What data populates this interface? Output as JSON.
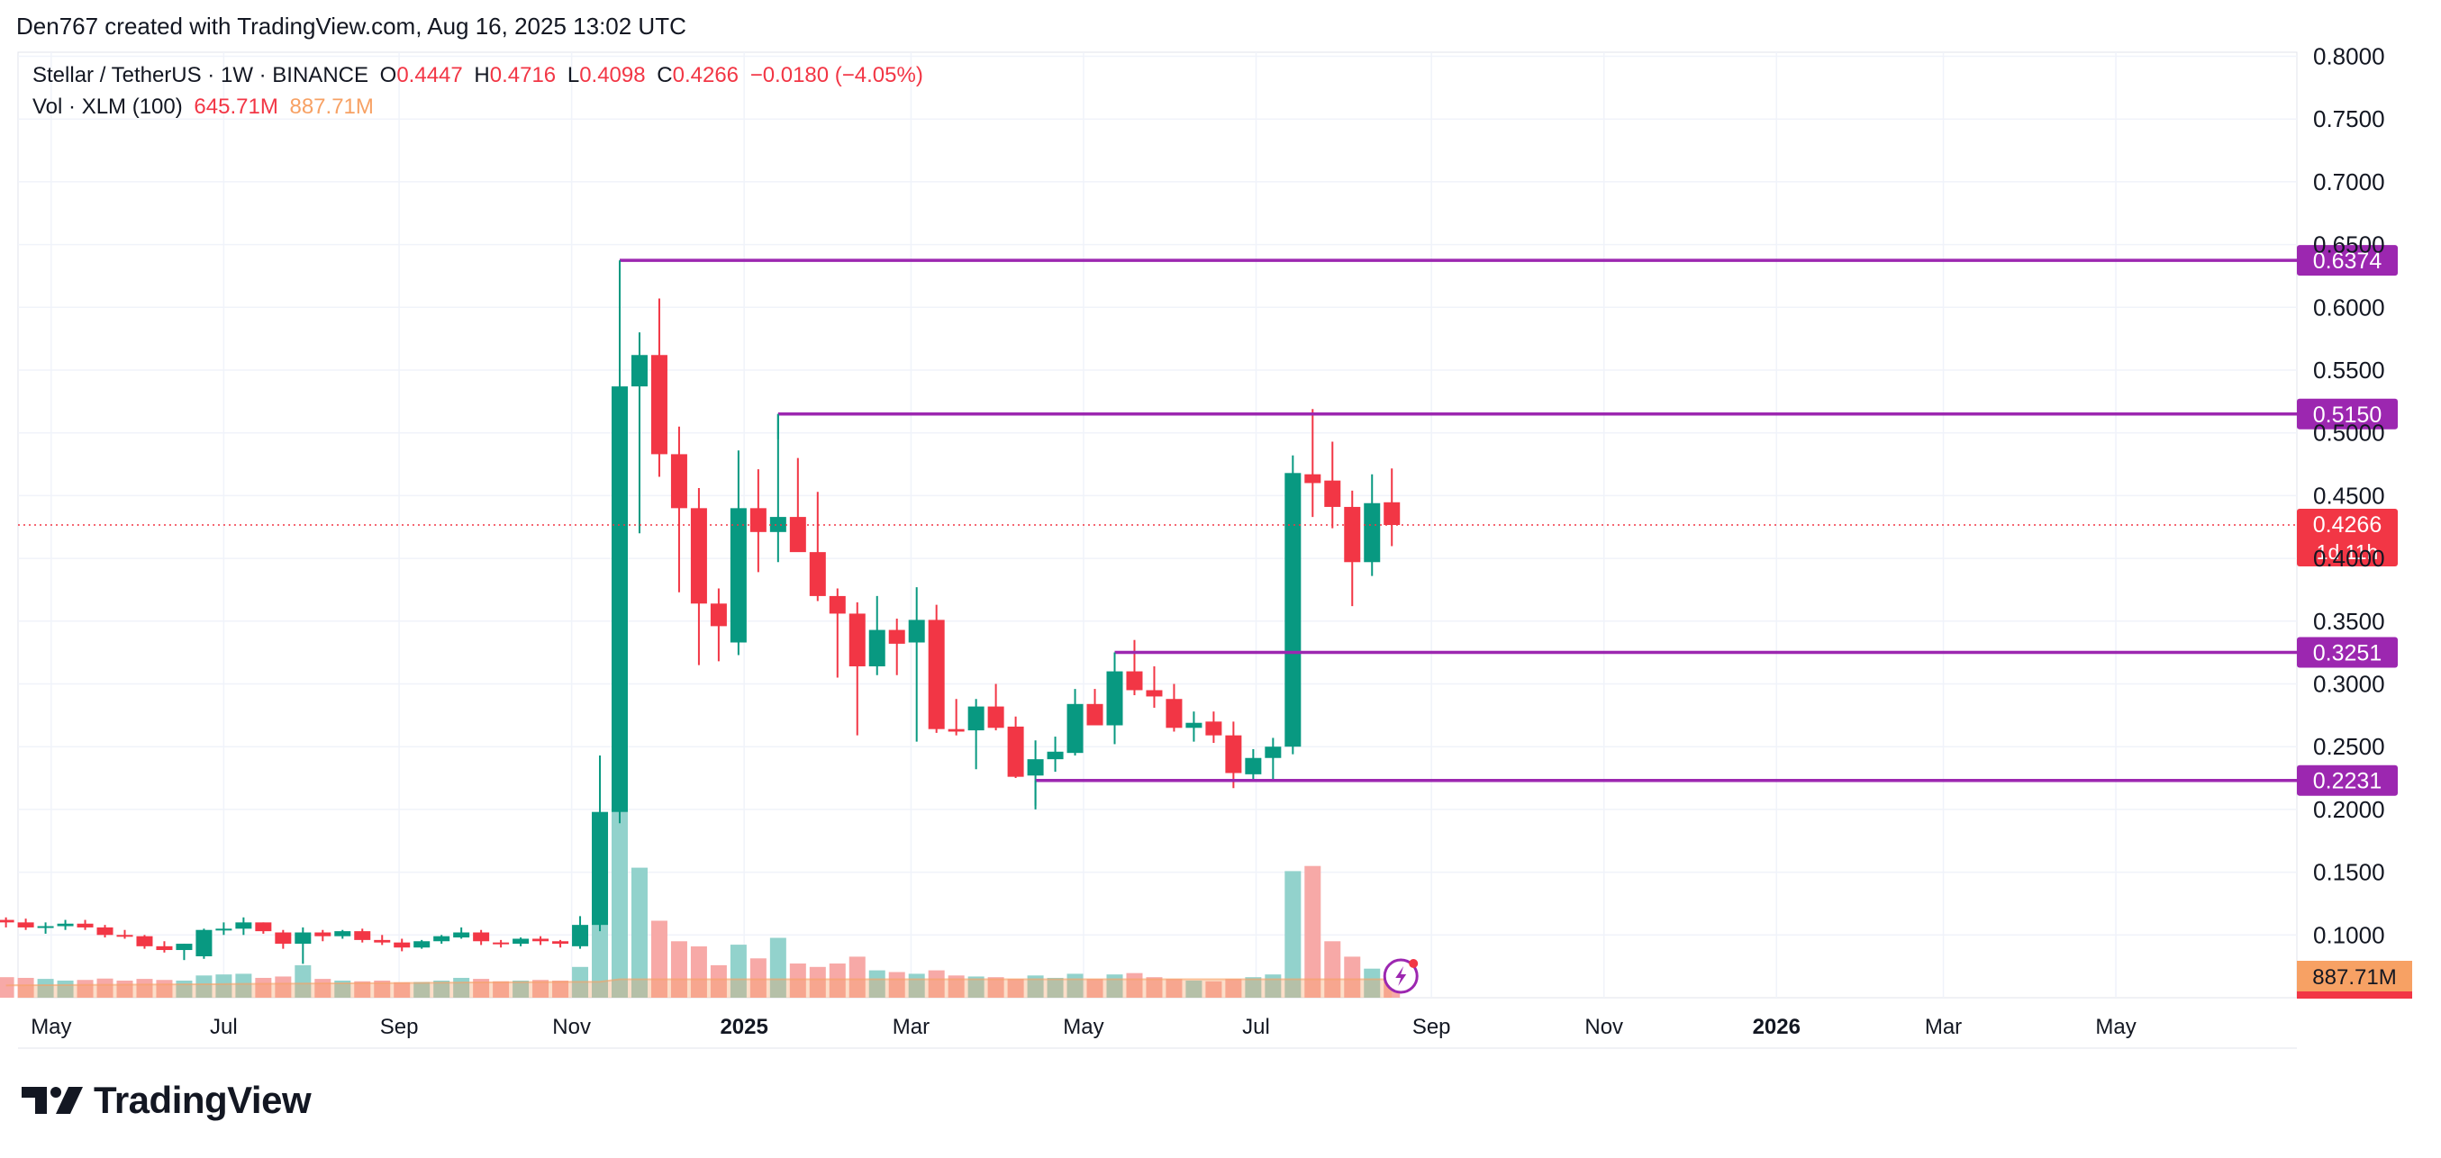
{
  "attribution": "Den767 created with TradingView.com, Aug 16, 2025 13:02 UTC",
  "legend": {
    "symbol": "Stellar / TetherUS · 1W · BINANCE",
    "o_label": "O",
    "o_value": "0.4447",
    "h_label": "H",
    "h_value": "0.4716",
    "l_label": "L",
    "l_value": "0.4098",
    "c_label": "C",
    "c_value": "0.4266",
    "change": "−0.0180 (−4.05%)",
    "vol_label": "Vol · XLM (100)",
    "vol_value": "645.71M",
    "vol_ma_value": "887.71M"
  },
  "brand": "TradingView",
  "colors": {
    "up": "#089981",
    "down": "#f23645",
    "level": "#9c27b0",
    "vol_up": "#92d2cc",
    "vol_down": "#f7a9a7",
    "vol_ma": "#f7a164",
    "grid": "#f0f3fa"
  },
  "chart_data": {
    "type": "candlestick",
    "interval": "1W",
    "ylim": [
      0.05,
      0.8
    ],
    "y_ticks": [
      "0.8000",
      "0.7500",
      "0.7000",
      "0.6500",
      "0.6000",
      "0.5500",
      "0.5000",
      "0.4500",
      "0.4000",
      "0.3500",
      "0.3000",
      "0.2500",
      "0.2000",
      "0.1500",
      "0.1000"
    ],
    "x_labels": [
      {
        "label": "May",
        "date": "2024-05-01",
        "bold": false
      },
      {
        "label": "Jul",
        "date": "2024-07-01",
        "bold": false
      },
      {
        "label": "Sep",
        "date": "2024-09-01",
        "bold": false
      },
      {
        "label": "Nov",
        "date": "2024-11-01",
        "bold": false
      },
      {
        "label": "2025",
        "date": "2025-01-01",
        "bold": true
      },
      {
        "label": "Mar",
        "date": "2025-03-01",
        "bold": false
      },
      {
        "label": "May",
        "date": "2025-05-01",
        "bold": false
      },
      {
        "label": "Jul",
        "date": "2025-07-01",
        "bold": false
      },
      {
        "label": "Sep",
        "date": "2025-09-01",
        "bold": false
      },
      {
        "label": "Nov",
        "date": "2025-11-01",
        "bold": false
      },
      {
        "label": "2026",
        "date": "2026-01-01",
        "bold": true
      },
      {
        "label": "Mar",
        "date": "2026-03-01",
        "bold": false
      },
      {
        "label": "May",
        "date": "2026-05-01",
        "bold": false
      }
    ],
    "candles": [
      {
        "date": "2024-04-15",
        "o": 0.112,
        "h": 0.114,
        "l": 0.106,
        "c": 0.11,
        "v": 60
      },
      {
        "date": "2024-04-22",
        "o": 0.11,
        "h": 0.113,
        "l": 0.104,
        "c": 0.106,
        "v": 58
      },
      {
        "date": "2024-04-29",
        "o": 0.106,
        "h": 0.11,
        "l": 0.101,
        "c": 0.107,
        "v": 55
      },
      {
        "date": "2024-05-06",
        "o": 0.107,
        "h": 0.112,
        "l": 0.104,
        "c": 0.109,
        "v": 50
      },
      {
        "date": "2024-05-13",
        "o": 0.109,
        "h": 0.112,
        "l": 0.104,
        "c": 0.106,
        "v": 52
      },
      {
        "date": "2024-05-20",
        "o": 0.106,
        "h": 0.108,
        "l": 0.098,
        "c": 0.1,
        "v": 56
      },
      {
        "date": "2024-05-27",
        "o": 0.1,
        "h": 0.104,
        "l": 0.097,
        "c": 0.099,
        "v": 50
      },
      {
        "date": "2024-06-03",
        "o": 0.099,
        "h": 0.1,
        "l": 0.089,
        "c": 0.091,
        "v": 55
      },
      {
        "date": "2024-06-10",
        "o": 0.091,
        "h": 0.095,
        "l": 0.086,
        "c": 0.088,
        "v": 52
      },
      {
        "date": "2024-06-17",
        "o": 0.088,
        "h": 0.093,
        "l": 0.08,
        "c": 0.093,
        "v": 50
      },
      {
        "date": "2024-06-24",
        "o": 0.083,
        "h": 0.105,
        "l": 0.081,
        "c": 0.104,
        "v": 65
      },
      {
        "date": "2024-07-01",
        "o": 0.104,
        "h": 0.11,
        "l": 0.1,
        "c": 0.105,
        "v": 68
      },
      {
        "date": "2024-07-08",
        "o": 0.105,
        "h": 0.114,
        "l": 0.1,
        "c": 0.11,
        "v": 70
      },
      {
        "date": "2024-07-15",
        "o": 0.11,
        "h": 0.11,
        "l": 0.101,
        "c": 0.103,
        "v": 58
      },
      {
        "date": "2024-07-22",
        "o": 0.102,
        "h": 0.104,
        "l": 0.089,
        "c": 0.093,
        "v": 62
      },
      {
        "date": "2024-07-29",
        "o": 0.093,
        "h": 0.106,
        "l": 0.077,
        "c": 0.102,
        "v": 95
      },
      {
        "date": "2024-08-05",
        "o": 0.102,
        "h": 0.104,
        "l": 0.095,
        "c": 0.099,
        "v": 55
      },
      {
        "date": "2024-08-12",
        "o": 0.099,
        "h": 0.104,
        "l": 0.097,
        "c": 0.103,
        "v": 50
      },
      {
        "date": "2024-08-19",
        "o": 0.103,
        "h": 0.105,
        "l": 0.094,
        "c": 0.096,
        "v": 48
      },
      {
        "date": "2024-08-26",
        "o": 0.096,
        "h": 0.1,
        "l": 0.092,
        "c": 0.094,
        "v": 50
      },
      {
        "date": "2024-09-02",
        "o": 0.094,
        "h": 0.097,
        "l": 0.087,
        "c": 0.09,
        "v": 45
      },
      {
        "date": "2024-09-09",
        "o": 0.09,
        "h": 0.096,
        "l": 0.089,
        "c": 0.095,
        "v": 46
      },
      {
        "date": "2024-09-16",
        "o": 0.095,
        "h": 0.1,
        "l": 0.093,
        "c": 0.099,
        "v": 50
      },
      {
        "date": "2024-09-23",
        "o": 0.098,
        "h": 0.106,
        "l": 0.097,
        "c": 0.102,
        "v": 58
      },
      {
        "date": "2024-09-30",
        "o": 0.102,
        "h": 0.104,
        "l": 0.092,
        "c": 0.095,
        "v": 55
      },
      {
        "date": "2024-10-07",
        "o": 0.094,
        "h": 0.096,
        "l": 0.09,
        "c": 0.093,
        "v": 48
      },
      {
        "date": "2024-10-14",
        "o": 0.093,
        "h": 0.098,
        "l": 0.091,
        "c": 0.097,
        "v": 50
      },
      {
        "date": "2024-10-21",
        "o": 0.097,
        "h": 0.099,
        "l": 0.092,
        "c": 0.095,
        "v": 52
      },
      {
        "date": "2024-10-28",
        "o": 0.095,
        "h": 0.096,
        "l": 0.09,
        "c": 0.093,
        "v": 50
      },
      {
        "date": "2024-11-04",
        "o": 0.091,
        "h": 0.115,
        "l": 0.089,
        "c": 0.108,
        "v": 90
      },
      {
        "date": "2024-11-11",
        "o": 0.108,
        "h": 0.243,
        "l": 0.103,
        "c": 0.198,
        "v": 345
      },
      {
        "date": "2024-11-18",
        "o": 0.198,
        "h": 0.637,
        "l": 0.189,
        "c": 0.537,
        "v": 575
      },
      {
        "date": "2024-11-25",
        "o": 0.537,
        "h": 0.58,
        "l": 0.42,
        "c": 0.562,
        "v": 380
      },
      {
        "date": "2024-12-02",
        "o": 0.562,
        "h": 0.607,
        "l": 0.465,
        "c": 0.483,
        "v": 225
      },
      {
        "date": "2024-12-09",
        "o": 0.483,
        "h": 0.505,
        "l": 0.373,
        "c": 0.44,
        "v": 165
      },
      {
        "date": "2024-12-16",
        "o": 0.44,
        "h": 0.456,
        "l": 0.315,
        "c": 0.364,
        "v": 150
      },
      {
        "date": "2024-12-23",
        "o": 0.364,
        "h": 0.376,
        "l": 0.318,
        "c": 0.346,
        "v": 95
      },
      {
        "date": "2024-12-30",
        "o": 0.333,
        "h": 0.486,
        "l": 0.323,
        "c": 0.44,
        "v": 155
      },
      {
        "date": "2025-01-06",
        "o": 0.44,
        "h": 0.471,
        "l": 0.389,
        "c": 0.421,
        "v": 115
      },
      {
        "date": "2025-01-13",
        "o": 0.421,
        "h": 0.515,
        "l": 0.397,
        "c": 0.433,
        "v": 175
      },
      {
        "date": "2025-01-20",
        "o": 0.433,
        "h": 0.48,
        "l": 0.411,
        "c": 0.405,
        "v": 100
      },
      {
        "date": "2025-01-27",
        "o": 0.405,
        "h": 0.453,
        "l": 0.366,
        "c": 0.37,
        "v": 90
      },
      {
        "date": "2025-02-03",
        "o": 0.37,
        "h": 0.376,
        "l": 0.305,
        "c": 0.356,
        "v": 100
      },
      {
        "date": "2025-02-10",
        "o": 0.356,
        "h": 0.365,
        "l": 0.259,
        "c": 0.314,
        "v": 120
      },
      {
        "date": "2025-02-17",
        "o": 0.314,
        "h": 0.37,
        "l": 0.307,
        "c": 0.343,
        "v": 80
      },
      {
        "date": "2025-02-24",
        "o": 0.343,
        "h": 0.352,
        "l": 0.307,
        "c": 0.332,
        "v": 75
      },
      {
        "date": "2025-03-03",
        "o": 0.333,
        "h": 0.377,
        "l": 0.254,
        "c": 0.351,
        "v": 70
      },
      {
        "date": "2025-03-10",
        "o": 0.351,
        "h": 0.363,
        "l": 0.261,
        "c": 0.264,
        "v": 80
      },
      {
        "date": "2025-03-17",
        "o": 0.264,
        "h": 0.288,
        "l": 0.259,
        "c": 0.262,
        "v": 65
      },
      {
        "date": "2025-03-24",
        "o": 0.263,
        "h": 0.288,
        "l": 0.232,
        "c": 0.282,
        "v": 62
      },
      {
        "date": "2025-03-31",
        "o": 0.282,
        "h": 0.3,
        "l": 0.263,
        "c": 0.265,
        "v": 60
      },
      {
        "date": "2025-04-07",
        "o": 0.266,
        "h": 0.274,
        "l": 0.225,
        "c": 0.226,
        "v": 55
      },
      {
        "date": "2025-04-14",
        "o": 0.227,
        "h": 0.255,
        "l": 0.2,
        "c": 0.24,
        "v": 65
      },
      {
        "date": "2025-04-21",
        "o": 0.24,
        "h": 0.258,
        "l": 0.23,
        "c": 0.246,
        "v": 58
      },
      {
        "date": "2025-04-28",
        "o": 0.245,
        "h": 0.296,
        "l": 0.243,
        "c": 0.284,
        "v": 70
      },
      {
        "date": "2025-05-05",
        "o": 0.284,
        "h": 0.296,
        "l": 0.272,
        "c": 0.267,
        "v": 55
      },
      {
        "date": "2025-05-12",
        "o": 0.267,
        "h": 0.315,
        "l": 0.252,
        "c": 0.31,
        "v": 68
      },
      {
        "date": "2025-05-19",
        "o": 0.31,
        "h": 0.335,
        "l": 0.291,
        "c": 0.295,
        "v": 72
      },
      {
        "date": "2025-05-26",
        "o": 0.295,
        "h": 0.314,
        "l": 0.281,
        "c": 0.29,
        "v": 60
      },
      {
        "date": "2025-06-02",
        "o": 0.288,
        "h": 0.3,
        "l": 0.262,
        "c": 0.265,
        "v": 55
      },
      {
        "date": "2025-06-09",
        "o": 0.265,
        "h": 0.278,
        "l": 0.254,
        "c": 0.269,
        "v": 50
      },
      {
        "date": "2025-06-16",
        "o": 0.27,
        "h": 0.278,
        "l": 0.253,
        "c": 0.259,
        "v": 48
      },
      {
        "date": "2025-06-23",
        "o": 0.259,
        "h": 0.27,
        "l": 0.217,
        "c": 0.229,
        "v": 55
      },
      {
        "date": "2025-06-30",
        "o": 0.228,
        "h": 0.248,
        "l": 0.223,
        "c": 0.241,
        "v": 60
      },
      {
        "date": "2025-07-07",
        "o": 0.241,
        "h": 0.257,
        "l": 0.223,
        "c": 0.25,
        "v": 68
      },
      {
        "date": "2025-07-14",
        "o": 0.25,
        "h": 0.482,
        "l": 0.244,
        "c": 0.468,
        "v": 370
      },
      {
        "date": "2025-07-21",
        "o": 0.467,
        "h": 0.519,
        "l": 0.433,
        "c": 0.46,
        "v": 385
      },
      {
        "date": "2025-07-28",
        "o": 0.462,
        "h": 0.493,
        "l": 0.424,
        "c": 0.441,
        "v": 165
      },
      {
        "date": "2025-08-04",
        "o": 0.441,
        "h": 0.454,
        "l": 0.362,
        "c": 0.397,
        "v": 120
      },
      {
        "date": "2025-08-11",
        "o": 0.397,
        "h": 0.467,
        "l": 0.386,
        "c": 0.444,
        "v": 85
      },
      {
        "date": "2025-08-18",
        "o": 0.4447,
        "h": 0.4716,
        "l": 0.4098,
        "c": 0.4266,
        "v": 55
      }
    ],
    "levels": [
      {
        "value": "0.6374",
        "from": "2024-11-18"
      },
      {
        "value": "0.5150",
        "from": "2025-01-13"
      },
      {
        "value": "0.3251",
        "from": "2025-05-12"
      },
      {
        "value": "0.2231",
        "from": "2025-04-14"
      }
    ],
    "last_price": "0.4266",
    "countdown": "1d 11h",
    "volume_ma_label": "887.71M",
    "volume_last_label": "645.71M"
  }
}
